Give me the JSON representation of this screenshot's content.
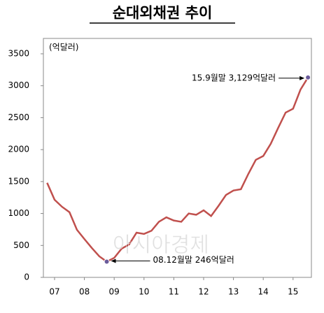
{
  "chart_data": {
    "type": "line",
    "title": "순대외채권 추이",
    "unit": "(억달러)",
    "x": [
      7.25,
      7.5,
      7.75,
      8.0,
      8.25,
      8.5,
      8.75,
      9.0,
      9.25,
      9.5,
      9.75,
      10.0,
      10.25,
      10.5,
      10.75,
      11.0,
      11.25,
      11.5,
      11.75,
      12.0,
      12.25,
      12.5,
      12.75,
      13.0,
      13.25,
      13.5,
      13.75,
      14.0,
      14.25,
      14.5,
      14.75,
      15.0,
      15.25,
      15.5,
      15.75,
      16.0
    ],
    "series": [
      {
        "color": "#c0504d",
        "values": [
          1480,
          1215,
          1105,
          1020,
          745,
          600,
          460,
          330,
          246,
          305,
          450,
          515,
          700,
          680,
          730,
          870,
          940,
          890,
          870,
          1000,
          980,
          1050,
          960,
          1120,
          1290,
          1360,
          1380,
          1620,
          1840,
          1900,
          2090,
          2340,
          2580,
          2640,
          2940,
          3129
        ]
      }
    ],
    "xlim": [
      7.125,
      16.115
    ],
    "xticks": [
      {
        "value": 7.5,
        "label": "07"
      },
      {
        "value": 8.5,
        "label": "08"
      },
      {
        "value": 9.5,
        "label": "09"
      },
      {
        "value": 10.5,
        "label": "10"
      },
      {
        "value": 11.5,
        "label": "11"
      },
      {
        "value": 12.5,
        "label": "12"
      },
      {
        "value": 13.5,
        "label": "13"
      },
      {
        "value": 14.5,
        "label": "14"
      },
      {
        "value": 15.5,
        "label": "15"
      }
    ],
    "ylim": [
      0,
      3500
    ],
    "yticks": [
      0,
      500,
      1000,
      1500,
      2000,
      2500,
      3000,
      3500
    ],
    "annotations": [
      "15.9월말 3,129억달러",
      "08.12월말 246억달러"
    ],
    "watermark": "아시아경제"
  }
}
